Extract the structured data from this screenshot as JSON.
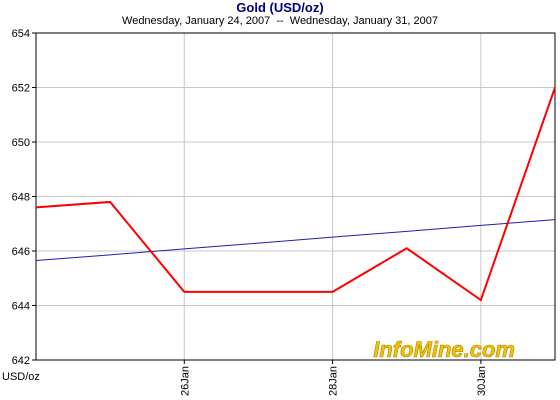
{
  "chart_data": {
    "type": "line",
    "title": "Gold (USD/oz)",
    "subtitle": "Wednesday, January 24, 2007  --  Wednesday, January 31, 2007",
    "y_label": "USD/oz",
    "watermark": "InfoMine.com",
    "categories": [
      null,
      null,
      "26Jan",
      null,
      "28Jan",
      null,
      "30Jan",
      null
    ],
    "series": [
      {
        "color": "#ff0000",
        "values": [
          647.6,
          647.8,
          644.5,
          644.5,
          644.5,
          646.1,
          644.2,
          652.0
        ]
      },
      {
        "color": "#2020b0",
        "values": [
          645.65,
          645.86,
          646.08,
          646.29,
          646.51,
          646.72,
          646.94,
          647.15
        ]
      }
    ],
    "ylim": [
      642,
      654
    ],
    "yticks": [
      642,
      644,
      646,
      648,
      650,
      652,
      654
    ],
    "grid": true
  }
}
